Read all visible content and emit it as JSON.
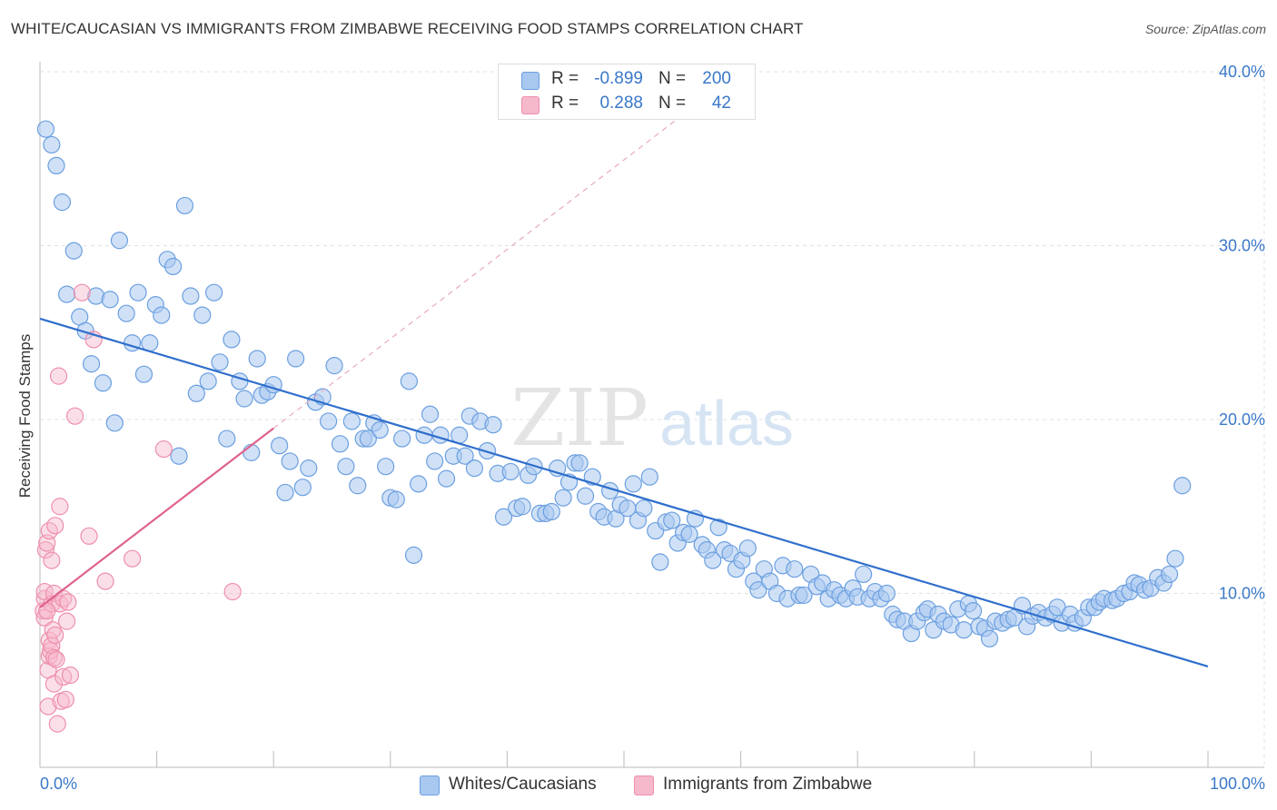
{
  "title": "WHITE/CAUCASIAN VS IMMIGRANTS FROM ZIMBABWE RECEIVING FOOD STAMPS CORRELATION CHART",
  "source": "Source: ZipAtlas.com",
  "watermark": {
    "zip": "ZIP",
    "atlas": "atlas"
  },
  "stats": {
    "row1": {
      "r_label": "R =",
      "r_value": "-0.899",
      "n_label": "N =",
      "n_value": "200"
    },
    "row2": {
      "r_label": "R =",
      "r_value": "0.288",
      "n_label": "N =",
      "n_value": "42"
    }
  },
  "colors": {
    "blue_fill": "#a9c8f0",
    "blue_stroke": "#6b9fe0",
    "blue_line": "#2f6fcc",
    "pink_fill": "#f6b8cb",
    "pink_stroke": "#ee8fac",
    "pink_line": "#e0628c",
    "tick_text": "#3a78c9",
    "grid": "#e2e2e2"
  },
  "chart_data": {
    "type": "scatter",
    "title": "WHITE/CAUCASIAN VS IMMIGRANTS FROM ZIMBABWE RECEIVING FOOD STAMPS CORRELATION CHART",
    "xlabel": "",
    "ylabel": "Receiving Food Stamps",
    "xlim": [
      0,
      100
    ],
    "ylim": [
      0,
      42
    ],
    "x_tick_labels": {
      "min": "0.0%",
      "max": "100.0%"
    },
    "y_ticks": [
      10,
      20,
      30,
      40
    ],
    "y_tick_labels": [
      "10.0%",
      "20.0%",
      "30.0%",
      "40.0%"
    ],
    "grid": true,
    "legend_position": "bottom",
    "series": [
      {
        "name": "Whites/Caucasians",
        "color": "#a9c8f0",
        "trend": {
          "x": [
            0,
            100
          ],
          "y": [
            25.8,
            5.8
          ]
        },
        "points": [
          [
            0.5,
            36.7
          ],
          [
            1.0,
            35.8
          ],
          [
            1.4,
            34.6
          ],
          [
            1.9,
            32.5
          ],
          [
            2.3,
            27.2
          ],
          [
            2.9,
            29.7
          ],
          [
            3.4,
            25.9
          ],
          [
            3.9,
            25.1
          ],
          [
            4.4,
            23.2
          ],
          [
            4.8,
            27.1
          ],
          [
            5.4,
            22.1
          ],
          [
            6.0,
            26.9
          ],
          [
            6.4,
            19.8
          ],
          [
            6.8,
            30.3
          ],
          [
            7.4,
            26.1
          ],
          [
            7.9,
            24.4
          ],
          [
            8.4,
            27.3
          ],
          [
            8.9,
            22.6
          ],
          [
            9.4,
            24.4
          ],
          [
            9.9,
            26.6
          ],
          [
            10.4,
            26.0
          ],
          [
            10.9,
            29.2
          ],
          [
            11.4,
            28.8
          ],
          [
            11.9,
            17.9
          ],
          [
            12.4,
            32.3
          ],
          [
            12.9,
            27.1
          ],
          [
            13.4,
            21.5
          ],
          [
            13.9,
            26.0
          ],
          [
            14.4,
            22.2
          ],
          [
            14.9,
            27.3
          ],
          [
            15.4,
            23.3
          ],
          [
            16.0,
            18.9
          ],
          [
            16.4,
            24.6
          ],
          [
            17.1,
            22.2
          ],
          [
            17.5,
            21.2
          ],
          [
            18.1,
            18.1
          ],
          [
            18.6,
            23.5
          ],
          [
            19.0,
            21.4
          ],
          [
            19.5,
            21.6
          ],
          [
            20.0,
            22.0
          ],
          [
            20.5,
            18.5
          ],
          [
            21.0,
            15.8
          ],
          [
            21.4,
            17.6
          ],
          [
            21.9,
            23.5
          ],
          [
            22.5,
            16.1
          ],
          [
            23.0,
            17.2
          ],
          [
            23.6,
            21.0
          ],
          [
            24.2,
            21.3
          ],
          [
            24.7,
            19.9
          ],
          [
            25.2,
            23.1
          ],
          [
            25.7,
            18.6
          ],
          [
            26.2,
            17.3
          ],
          [
            26.7,
            19.9
          ],
          [
            27.2,
            16.2
          ],
          [
            27.7,
            18.9
          ],
          [
            28.1,
            18.9
          ],
          [
            28.6,
            19.8
          ],
          [
            29.1,
            19.4
          ],
          [
            29.6,
            17.3
          ],
          [
            30.0,
            15.5
          ],
          [
            30.5,
            15.4
          ],
          [
            31.0,
            18.9
          ],
          [
            31.6,
            22.2
          ],
          [
            32.0,
            12.2
          ],
          [
            32.4,
            16.3
          ],
          [
            32.9,
            19.1
          ],
          [
            33.4,
            20.3
          ],
          [
            33.8,
            17.6
          ],
          [
            34.3,
            19.1
          ],
          [
            34.8,
            16.6
          ],
          [
            35.4,
            17.9
          ],
          [
            35.9,
            19.1
          ],
          [
            36.4,
            17.9
          ],
          [
            36.8,
            20.2
          ],
          [
            37.2,
            17.2
          ],
          [
            37.7,
            19.9
          ],
          [
            38.3,
            18.2
          ],
          [
            38.8,
            19.7
          ],
          [
            39.2,
            16.9
          ],
          [
            39.7,
            14.4
          ],
          [
            40.3,
            17.0
          ],
          [
            40.8,
            14.9
          ],
          [
            41.3,
            15.0
          ],
          [
            41.8,
            16.8
          ],
          [
            42.3,
            17.3
          ],
          [
            42.8,
            14.6
          ],
          [
            43.3,
            14.6
          ],
          [
            43.8,
            14.7
          ],
          [
            44.3,
            17.2
          ],
          [
            44.8,
            15.5
          ],
          [
            45.3,
            16.4
          ],
          [
            45.8,
            17.5
          ],
          [
            46.2,
            17.5
          ],
          [
            46.7,
            15.6
          ],
          [
            47.3,
            16.7
          ],
          [
            47.8,
            14.7
          ],
          [
            48.3,
            14.4
          ],
          [
            48.8,
            15.9
          ],
          [
            49.3,
            14.3
          ],
          [
            49.7,
            15.1
          ],
          [
            50.3,
            14.9
          ],
          [
            50.8,
            16.3
          ],
          [
            51.2,
            14.2
          ],
          [
            51.7,
            14.9
          ],
          [
            52.2,
            16.7
          ],
          [
            52.7,
            13.6
          ],
          [
            53.1,
            11.8
          ],
          [
            53.6,
            14.1
          ],
          [
            54.1,
            14.2
          ],
          [
            54.6,
            12.9
          ],
          [
            55.1,
            13.5
          ],
          [
            55.6,
            13.4
          ],
          [
            56.1,
            14.3
          ],
          [
            56.7,
            12.8
          ],
          [
            57.1,
            12.5
          ],
          [
            57.6,
            11.9
          ],
          [
            58.1,
            13.8
          ],
          [
            58.6,
            12.5
          ],
          [
            59.1,
            12.3
          ],
          [
            59.6,
            11.4
          ],
          [
            60.1,
            11.9
          ],
          [
            60.6,
            12.6
          ],
          [
            61.1,
            10.7
          ],
          [
            61.5,
            10.2
          ],
          [
            62.0,
            11.4
          ],
          [
            62.5,
            10.7
          ],
          [
            63.1,
            10.0
          ],
          [
            63.6,
            11.6
          ],
          [
            64.0,
            9.7
          ],
          [
            64.6,
            11.4
          ],
          [
            65.0,
            9.9
          ],
          [
            65.4,
            9.9
          ],
          [
            66.0,
            11.1
          ],
          [
            66.5,
            10.4
          ],
          [
            67.0,
            10.6
          ],
          [
            67.5,
            9.7
          ],
          [
            68.0,
            10.2
          ],
          [
            68.5,
            9.9
          ],
          [
            69.0,
            9.7
          ],
          [
            69.6,
            10.3
          ],
          [
            70.0,
            9.8
          ],
          [
            70.5,
            11.1
          ],
          [
            71.0,
            9.7
          ],
          [
            71.5,
            10.1
          ],
          [
            72.0,
            9.7
          ],
          [
            72.5,
            10.0
          ],
          [
            73.0,
            8.8
          ],
          [
            73.4,
            8.5
          ],
          [
            74.0,
            8.4
          ],
          [
            74.6,
            7.7
          ],
          [
            75.1,
            8.4
          ],
          [
            75.7,
            8.9
          ],
          [
            76.0,
            9.1
          ],
          [
            76.5,
            7.9
          ],
          [
            76.9,
            8.8
          ],
          [
            77.4,
            8.4
          ],
          [
            78.0,
            8.2
          ],
          [
            78.6,
            9.1
          ],
          [
            79.1,
            7.9
          ],
          [
            79.5,
            9.4
          ],
          [
            79.9,
            9.0
          ],
          [
            80.4,
            8.1
          ],
          [
            80.9,
            8.0
          ],
          [
            81.3,
            7.4
          ],
          [
            81.8,
            8.4
          ],
          [
            82.4,
            8.3
          ],
          [
            82.9,
            8.5
          ],
          [
            83.4,
            8.6
          ],
          [
            84.1,
            9.3
          ],
          [
            84.5,
            8.1
          ],
          [
            85.0,
            8.7
          ],
          [
            85.5,
            8.9
          ],
          [
            86.1,
            8.6
          ],
          [
            86.7,
            8.8
          ],
          [
            87.1,
            9.2
          ],
          [
            87.5,
            8.3
          ],
          [
            88.2,
            8.8
          ],
          [
            88.6,
            8.3
          ],
          [
            89.3,
            8.6
          ],
          [
            89.8,
            9.2
          ],
          [
            90.3,
            9.2
          ],
          [
            90.7,
            9.5
          ],
          [
            91.1,
            9.7
          ],
          [
            91.8,
            9.6
          ],
          [
            92.2,
            9.7
          ],
          [
            92.8,
            10.0
          ],
          [
            93.3,
            10.1
          ],
          [
            93.7,
            10.6
          ],
          [
            94.1,
            10.5
          ],
          [
            94.6,
            10.2
          ],
          [
            95.1,
            10.3
          ],
          [
            95.7,
            10.9
          ],
          [
            96.2,
            10.6
          ],
          [
            96.7,
            11.1
          ],
          [
            97.2,
            12.0
          ],
          [
            97.8,
            16.2
          ]
        ]
      },
      {
        "name": "Immigrants from Zimbabwe",
        "color": "#f6b8cb",
        "trend": {
          "x": [
            0,
            20
          ],
          "y": [
            9.2,
            19.5
          ]
        },
        "trend_extension": {
          "x": [
            20,
            55
          ],
          "y": [
            19.5,
            37.5
          ]
        },
        "points": [
          [
            0.3,
            9.0
          ],
          [
            0.4,
            8.6
          ],
          [
            0.4,
            9.7
          ],
          [
            0.4,
            10.1
          ],
          [
            0.5,
            12.5
          ],
          [
            0.6,
            12.9
          ],
          [
            0.7,
            3.5
          ],
          [
            0.7,
            5.6
          ],
          [
            0.8,
            6.4
          ],
          [
            0.8,
            13.6
          ],
          [
            0.8,
            7.3
          ],
          [
            0.9,
            6.7
          ],
          [
            1.0,
            11.9
          ],
          [
            1.0,
            7.0
          ],
          [
            1.0,
            9.4
          ],
          [
            1.1,
            7.9
          ],
          [
            1.2,
            10.0
          ],
          [
            1.2,
            6.3
          ],
          [
            1.2,
            4.8
          ],
          [
            1.3,
            13.9
          ],
          [
            1.3,
            7.6
          ],
          [
            1.4,
            6.2
          ],
          [
            1.5,
            2.5
          ],
          [
            1.6,
            22.5
          ],
          [
            1.7,
            15.0
          ],
          [
            1.7,
            9.4
          ],
          [
            1.8,
            3.8
          ],
          [
            2.0,
            5.2
          ],
          [
            2.0,
            9.7
          ],
          [
            2.2,
            3.9
          ],
          [
            2.3,
            8.4
          ],
          [
            2.4,
            9.5
          ],
          [
            2.6,
            5.3
          ],
          [
            3.0,
            20.2
          ],
          [
            3.6,
            27.3
          ],
          [
            4.2,
            13.3
          ],
          [
            4.6,
            24.6
          ],
          [
            5.6,
            10.7
          ],
          [
            7.9,
            12.0
          ],
          [
            10.6,
            18.3
          ],
          [
            16.5,
            10.1
          ],
          [
            0.6,
            9.0
          ]
        ]
      }
    ]
  },
  "legend": [
    {
      "label": "Whites/Caucasians",
      "color": "#a9c8f0"
    },
    {
      "label": "Immigrants from Zimbabwe",
      "color": "#f6b8cb"
    }
  ]
}
